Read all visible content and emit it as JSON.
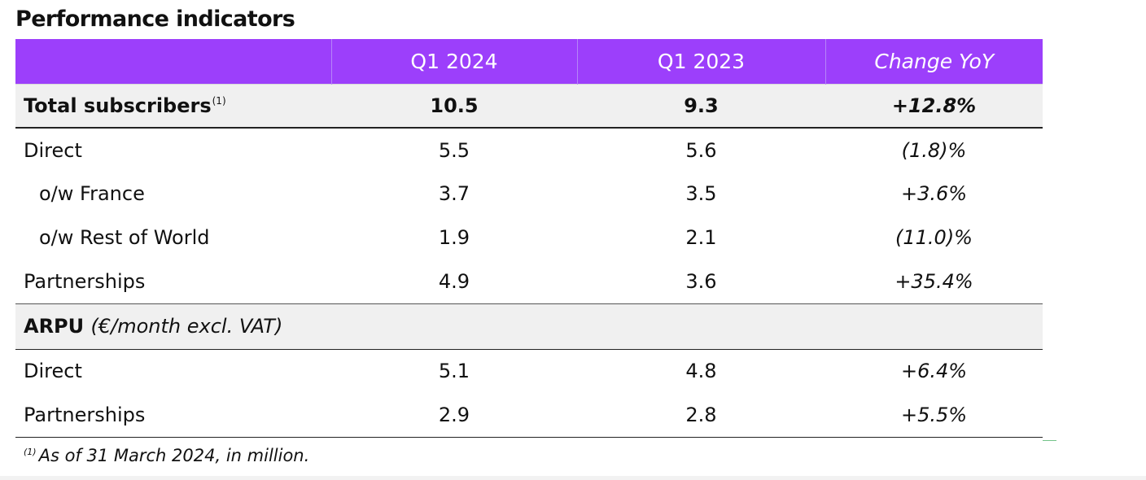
{
  "title": "Performance indicators",
  "table": {
    "columns": [
      "",
      "Q1 2024",
      "Q1 2023",
      "Change YoY"
    ],
    "rows": [
      {
        "label": "Total subscribers",
        "footnote_marker": "(1)",
        "q1_2024": "10.5",
        "q1_2023": "9.3",
        "change": "+12.8%"
      },
      {
        "label": "Direct",
        "q1_2024": "5.5",
        "q1_2023": "5.6",
        "change": "(1.8)%"
      },
      {
        "label": "o/w France",
        "q1_2024": "3.7",
        "q1_2023": "3.5",
        "change": "+3.6%"
      },
      {
        "label": "o/w Rest of World",
        "q1_2024": "1.9",
        "q1_2023": "2.1",
        "change": "(11.0)%"
      },
      {
        "label": "Partnerships",
        "q1_2024": "4.9",
        "q1_2023": "3.6",
        "change": "+35.4%"
      },
      {
        "label": "ARPU",
        "unit": "(€/month excl. VAT)"
      },
      {
        "label": "Direct",
        "q1_2024": "5.1",
        "q1_2023": "4.8",
        "change": "+6.4%"
      },
      {
        "label": "Partnerships",
        "q1_2024": "2.9",
        "q1_2023": "2.8",
        "change": "+5.5%"
      }
    ]
  },
  "footnote": {
    "marker": "(1)",
    "text": "As of 31 March 2024, in million."
  },
  "colors": {
    "header_background": "#9c3ffb",
    "header_text": "#ffffff",
    "shaded_row": "#f0f0f0"
  }
}
